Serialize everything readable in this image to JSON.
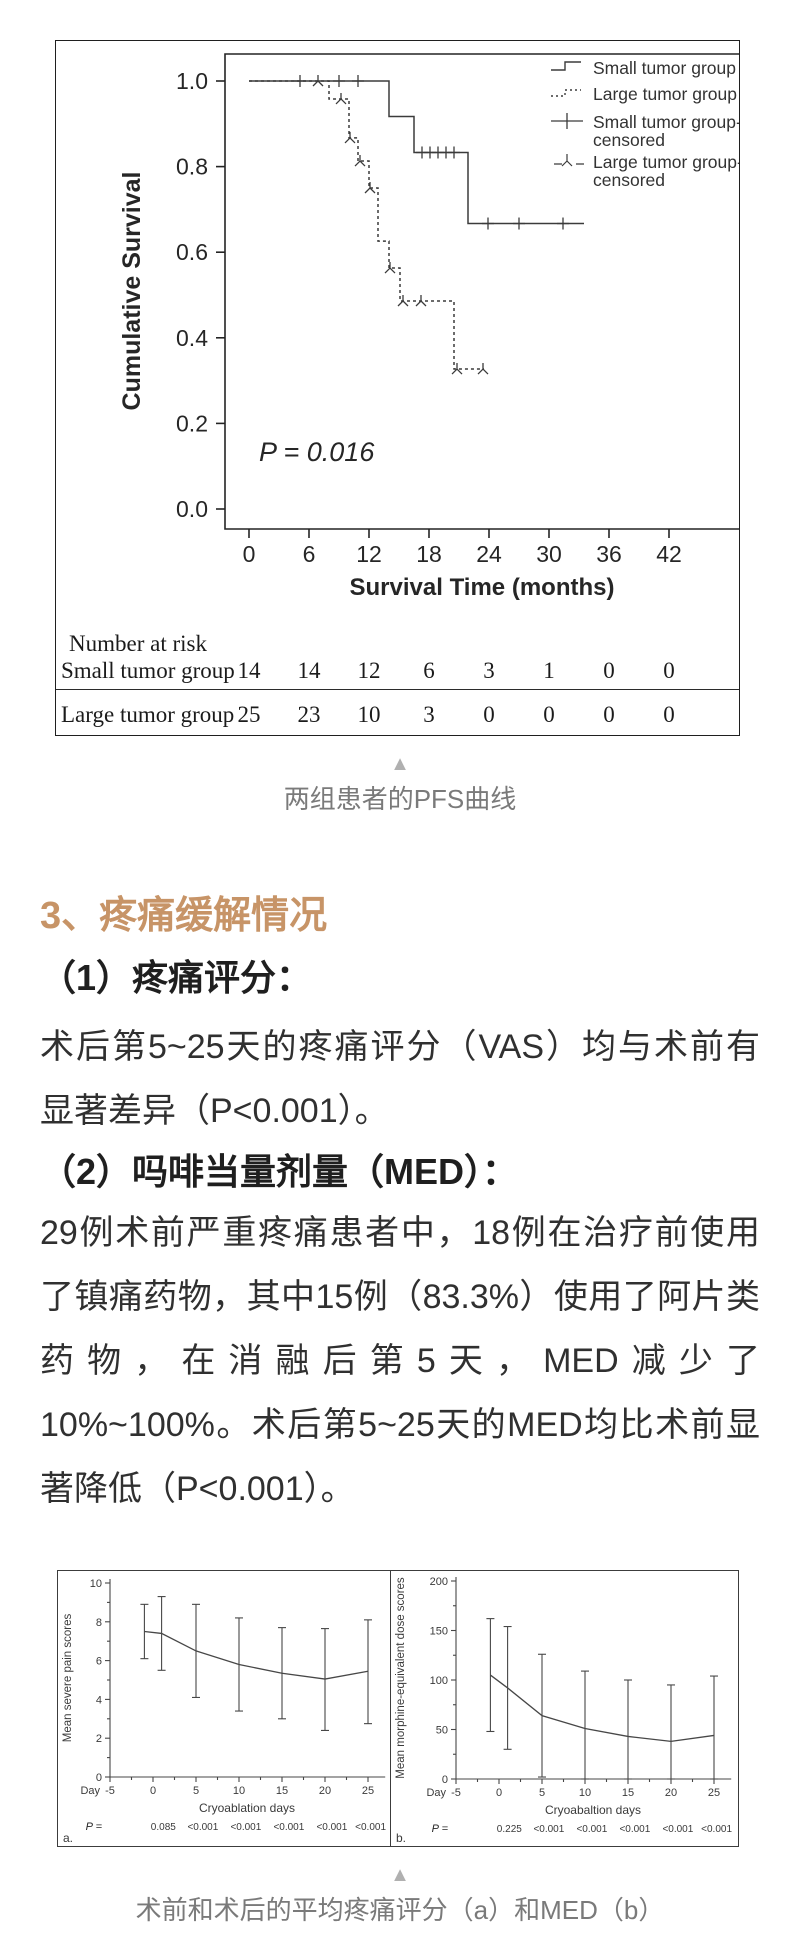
{
  "colors": {
    "accent_heading": "#c79467",
    "caption_gray": "#7a7a7a",
    "triangle_gray": "#b0b0b0",
    "chart_stroke": "#3b3b3b"
  },
  "icons": {
    "caption_marker": "▲"
  },
  "text": {
    "figure1_caption": "两组患者的PFS曲线",
    "section_heading": "3、疼痛缓解情况",
    "subheading_1": "（1）疼痛评分：",
    "paragraph_1": "术后第5~25天的疼痛评分（VAS）均与术前有显著差异（P<0.001）。",
    "subheading_2": "（2）吗啡当量剂量（MED）：",
    "paragraph_2": "29例术前严重疼痛患者中，18例在治疗前使用了镇痛药物，其中15例（83.3%）使用了阿片类药物，在消融后第5天，MED减少了10%~100%。术后第5~25天的MED均比术前显著降低（P<0.001）。",
    "figure2_caption": "术前和术后的平均疼痛评分（a）和MED（b）"
  },
  "chart_data": [
    {
      "id": "pfs-km",
      "type": "line",
      "title": "",
      "xlabel": "Survival Time (months)",
      "ylabel": "Cumulative Survival",
      "annotation": "P = 0.016",
      "xlim": [
        0,
        45
      ],
      "ylim": [
        0,
        1.0
      ],
      "x_ticks": [
        0,
        6,
        12,
        18,
        24,
        30,
        36,
        42
      ],
      "y_ticks": [
        1.0,
        0.8,
        0.6,
        0.4,
        0.2,
        0.0
      ],
      "grid": false,
      "legend_position": "top-right",
      "legend": [
        {
          "symbol": "solid-step",
          "label": "Small tumor group"
        },
        {
          "symbol": "dashed-step",
          "label": "Large tumor group"
        },
        {
          "symbol": "plus",
          "label": "Small tumor group-censored"
        },
        {
          "symbol": "tri",
          "label": "Large tumor group-censored"
        }
      ],
      "series": [
        {
          "name": "Small tumor group",
          "style": "solid",
          "steps": [
            [
              0,
              1
            ],
            [
              14,
              1
            ],
            [
              14,
              0.917
            ],
            [
              16.5,
              0.917
            ],
            [
              16.5,
              0.833
            ],
            [
              21.9,
              0.833
            ],
            [
              21.9,
              0.667
            ],
            [
              33.5,
              0.667
            ]
          ],
          "censors": [
            [
              5.1,
              1
            ],
            [
              9,
              1
            ],
            [
              10.9,
              1
            ],
            [
              17.3,
              0.833
            ],
            [
              18.1,
              0.833
            ],
            [
              18.9,
              0.833
            ],
            [
              19.7,
              0.833
            ],
            [
              20.5,
              0.833
            ],
            [
              23.9,
              0.667
            ],
            [
              27,
              0.667
            ],
            [
              31.4,
              0.667
            ]
          ]
        },
        {
          "name": "Large tumor group",
          "style": "dashed",
          "steps": [
            [
              0,
              1
            ],
            [
              8,
              1
            ],
            [
              8,
              0.958
            ],
            [
              10,
              0.958
            ],
            [
              10,
              0.867
            ],
            [
              10.9,
              0.867
            ],
            [
              10.9,
              0.813
            ],
            [
              12,
              0.813
            ],
            [
              12,
              0.75
            ],
            [
              12.9,
              0.75
            ],
            [
              12.9,
              0.626
            ],
            [
              14,
              0.626
            ],
            [
              14,
              0.563
            ],
            [
              15.1,
              0.563
            ],
            [
              15.1,
              0.486
            ],
            [
              20.5,
              0.486
            ],
            [
              20.5,
              0.327
            ],
            [
              23.5,
              0.327
            ]
          ],
          "censors": [
            [
              6.9,
              1
            ],
            [
              9.2,
              0.958
            ],
            [
              10.1,
              0.867
            ],
            [
              11.1,
              0.813
            ],
            [
              12.1,
              0.75
            ],
            [
              14.1,
              0.563
            ],
            [
              15.4,
              0.486
            ],
            [
              17.2,
              0.486
            ],
            [
              20.8,
              0.327
            ],
            [
              23.4,
              0.327
            ]
          ]
        }
      ],
      "number_at_risk": {
        "title": "Number at risk",
        "time_points": [
          0,
          6,
          12,
          18,
          24,
          30,
          36,
          42
        ],
        "rows": [
          {
            "label": "Small tumor group",
            "values": [
              14,
              14,
              12,
              6,
              3,
              1,
              0,
              0
            ]
          },
          {
            "label": "Large tumor group",
            "values": [
              25,
              23,
              10,
              3,
              0,
              0,
              0,
              0
            ]
          }
        ]
      }
    },
    {
      "id": "pain-scores",
      "type": "line",
      "panel_label": "a.",
      "ylabel": "Mean severe pain scores",
      "xlabel": "Cryoablation days",
      "x_prefix": "Day",
      "ylim": [
        0,
        10
      ],
      "y_ticks": [
        0,
        2,
        4,
        6,
        8,
        10
      ],
      "x_ticks": [
        -5,
        0,
        5,
        10,
        15,
        20,
        25
      ],
      "points": [
        {
          "day": -1,
          "mean": 7.5,
          "lo": 6.1,
          "hi": 8.9
        },
        {
          "day": 1,
          "mean": 7.4,
          "lo": 5.5,
          "hi": 9.3
        },
        {
          "day": 5,
          "mean": 6.5,
          "lo": 4.1,
          "hi": 8.9
        },
        {
          "day": 10,
          "mean": 5.8,
          "lo": 3.4,
          "hi": 8.2
        },
        {
          "day": 15,
          "mean": 5.35,
          "lo": 3.0,
          "hi": 7.7
        },
        {
          "day": 20,
          "mean": 5.05,
          "lo": 2.4,
          "hi": 7.65
        },
        {
          "day": 25,
          "mean": 5.45,
          "lo": 2.75,
          "hi": 8.1
        }
      ],
      "p_label": "P =",
      "p_values": [
        "0.085",
        "<0.001",
        "<0.001",
        "<0.001",
        "<0.001",
        "<0.001"
      ]
    },
    {
      "id": "med-scores",
      "type": "line",
      "panel_label": "b.",
      "ylabel": "Mean morphine-equivalent dose scores",
      "xlabel": "Cryoabaltion days",
      "x_prefix": "Day",
      "ylim": [
        0,
        200
      ],
      "y_ticks": [
        0,
        50,
        100,
        150,
        200
      ],
      "x_ticks": [
        -5,
        0,
        5,
        10,
        15,
        20,
        25
      ],
      "points": [
        {
          "day": -1,
          "mean": 105,
          "lo": 48,
          "hi": 162
        },
        {
          "day": 1,
          "mean": 92,
          "lo": 30,
          "hi": 154
        },
        {
          "day": 5,
          "mean": 64,
          "lo": 2,
          "hi": 126
        },
        {
          "day": 10,
          "mean": 51,
          "lo": 0,
          "hi": 109
        },
        {
          "day": 15,
          "mean": 43,
          "lo": 0,
          "hi": 100
        },
        {
          "day": 20,
          "mean": 38,
          "lo": 0,
          "hi": 95
        },
        {
          "day": 25,
          "mean": 44,
          "lo": 0,
          "hi": 104
        }
      ],
      "p_label": "P =",
      "p_values": [
        "0.225",
        "<0.001",
        "<0.001",
        "<0.001",
        "<0.001",
        "<0.001"
      ]
    }
  ]
}
